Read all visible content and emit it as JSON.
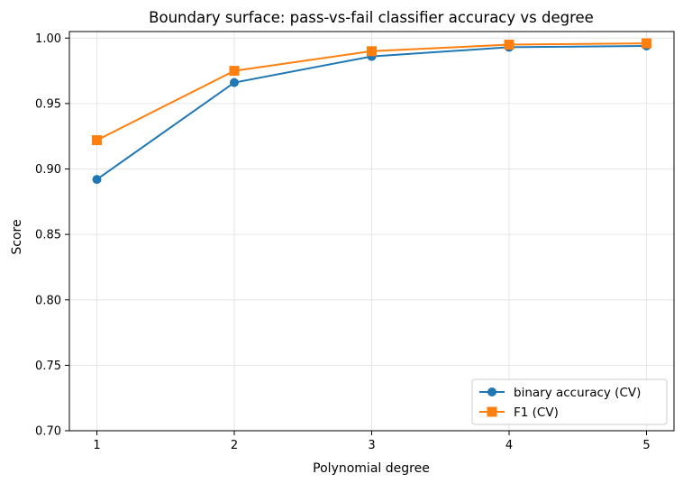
{
  "chart_data": {
    "type": "line",
    "title": "Boundary surface: pass-vs-fail classifier accuracy vs degree",
    "xlabel": "Polynomial degree",
    "ylabel": "Score",
    "x": [
      1,
      2,
      3,
      4,
      5
    ],
    "x_tick_labels": [
      "1",
      "2",
      "3",
      "4",
      "5"
    ],
    "y_ticks": [
      0.7,
      0.75,
      0.8,
      0.85,
      0.9,
      0.95,
      1.0
    ],
    "y_tick_labels": [
      "0.70",
      "0.75",
      "0.80",
      "0.85",
      "0.90",
      "0.95",
      "1.00"
    ],
    "xlim": [
      0.8,
      5.2
    ],
    "ylim": [
      0.7,
      1.005
    ],
    "grid": true,
    "legend_position": "bottom-right",
    "series": [
      {
        "name": "binary accuracy (CV)",
        "color": "#1f77b4",
        "marker": "circle",
        "values": [
          0.892,
          0.966,
          0.986,
          0.993,
          0.994
        ]
      },
      {
        "name": "F1 (CV)",
        "color": "#ff7f0e",
        "marker": "square",
        "values": [
          0.922,
          0.975,
          0.99,
          0.995,
          0.996
        ]
      }
    ]
  }
}
